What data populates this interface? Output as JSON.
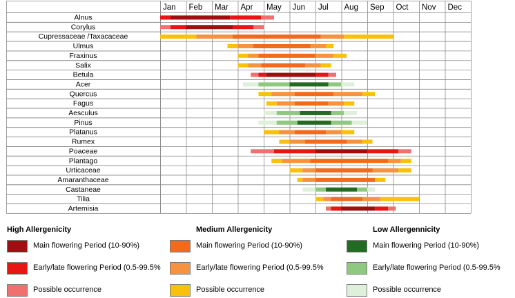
{
  "chart_data": {
    "type": "gantt",
    "x": [
      "Jan",
      "Feb",
      "Mar",
      "Apr",
      "May",
      "Jun",
      "Jul",
      "Aug",
      "Sep",
      "Oct",
      "Nov",
      "Dec"
    ],
    "colors": {
      "high": {
        "main": "#a00f0f",
        "early": "#e81515",
        "possible": "#f07070"
      },
      "medium": {
        "main": "#f26a1b",
        "early": "#f59340",
        "possible": "#f9c10b"
      },
      "low": {
        "main": "#236b23",
        "early": "#8fc97f",
        "possible": "#dff0da"
      }
    },
    "series": [
      {
        "name": "Alnus",
        "allergenicity": "high",
        "segments": [
          {
            "start": 0.0,
            "end": 0.4,
            "period": "early"
          },
          {
            "start": 0.4,
            "end": 2.7,
            "period": "main"
          },
          {
            "start": 2.7,
            "end": 3.9,
            "period": "early"
          },
          {
            "start": 3.9,
            "end": 4.4,
            "period": "possible"
          }
        ]
      },
      {
        "name": "Corylus",
        "allergenicity": "high",
        "segments": [
          {
            "start": 0.0,
            "end": 0.4,
            "period": "possible"
          },
          {
            "start": 0.4,
            "end": 1.0,
            "period": "early"
          },
          {
            "start": 1.0,
            "end": 2.8,
            "period": "main"
          },
          {
            "start": 2.8,
            "end": 3.6,
            "period": "early"
          },
          {
            "start": 3.6,
            "end": 4.0,
            "period": "possible"
          }
        ]
      },
      {
        "name": "Cupressaceae /Taxacaceae",
        "allergenicity": "medium",
        "segments": [
          {
            "start": 0.0,
            "end": 1.4,
            "period": "possible"
          },
          {
            "start": 1.4,
            "end": 2.8,
            "period": "early"
          },
          {
            "start": 2.8,
            "end": 6.2,
            "period": "main"
          },
          {
            "start": 6.2,
            "end": 7.1,
            "period": "early"
          },
          {
            "start": 7.1,
            "end": 9.0,
            "period": "possible"
          }
        ]
      },
      {
        "name": "Ulmus",
        "allergenicity": "medium",
        "segments": [
          {
            "start": 2.6,
            "end": 3.0,
            "period": "possible"
          },
          {
            "start": 3.0,
            "end": 3.6,
            "period": "early"
          },
          {
            "start": 3.6,
            "end": 5.8,
            "period": "main"
          },
          {
            "start": 5.8,
            "end": 6.4,
            "period": "early"
          },
          {
            "start": 6.4,
            "end": 6.7,
            "period": "possible"
          }
        ]
      },
      {
        "name": "Fraxinus",
        "allergenicity": "medium",
        "segments": [
          {
            "start": 3.0,
            "end": 3.4,
            "period": "possible"
          },
          {
            "start": 3.4,
            "end": 3.8,
            "period": "early"
          },
          {
            "start": 3.8,
            "end": 6.0,
            "period": "main"
          },
          {
            "start": 6.0,
            "end": 6.7,
            "period": "early"
          },
          {
            "start": 6.7,
            "end": 7.2,
            "period": "possible"
          }
        ]
      },
      {
        "name": "Salix",
        "allergenicity": "medium",
        "segments": [
          {
            "start": 3.0,
            "end": 3.4,
            "period": "possible"
          },
          {
            "start": 3.4,
            "end": 3.9,
            "period": "early"
          },
          {
            "start": 3.9,
            "end": 5.6,
            "period": "main"
          },
          {
            "start": 5.6,
            "end": 6.2,
            "period": "early"
          },
          {
            "start": 6.2,
            "end": 6.6,
            "period": "possible"
          }
        ]
      },
      {
        "name": "Betula",
        "allergenicity": "high",
        "segments": [
          {
            "start": 3.5,
            "end": 3.8,
            "period": "possible"
          },
          {
            "start": 3.8,
            "end": 4.1,
            "period": "early"
          },
          {
            "start": 4.1,
            "end": 6.0,
            "period": "main"
          },
          {
            "start": 6.0,
            "end": 6.5,
            "period": "early"
          },
          {
            "start": 6.5,
            "end": 6.8,
            "period": "possible"
          }
        ]
      },
      {
        "name": "Acer",
        "allergenicity": "low",
        "segments": [
          {
            "start": 3.2,
            "end": 3.8,
            "period": "possible"
          },
          {
            "start": 3.8,
            "end": 5.0,
            "period": "early"
          },
          {
            "start": 5.0,
            "end": 6.5,
            "period": "main"
          },
          {
            "start": 6.5,
            "end": 7.0,
            "period": "early"
          },
          {
            "start": 7.0,
            "end": 7.5,
            "period": "possible"
          }
        ]
      },
      {
        "name": "Quercus",
        "allergenicity": "medium",
        "segments": [
          {
            "start": 3.8,
            "end": 4.3,
            "period": "possible"
          },
          {
            "start": 4.3,
            "end": 5.2,
            "period": "early"
          },
          {
            "start": 5.2,
            "end": 6.7,
            "period": "main"
          },
          {
            "start": 6.7,
            "end": 7.8,
            "period": "early"
          },
          {
            "start": 7.8,
            "end": 8.3,
            "period": "possible"
          }
        ]
      },
      {
        "name": "Fagus",
        "allergenicity": "medium",
        "segments": [
          {
            "start": 4.1,
            "end": 4.5,
            "period": "possible"
          },
          {
            "start": 4.5,
            "end": 5.2,
            "period": "early"
          },
          {
            "start": 5.2,
            "end": 6.5,
            "period": "main"
          },
          {
            "start": 6.5,
            "end": 7.1,
            "period": "early"
          },
          {
            "start": 7.1,
            "end": 7.5,
            "period": "possible"
          }
        ]
      },
      {
        "name": "Aesculus",
        "allergenicity": "low",
        "segments": [
          {
            "start": 4.0,
            "end": 4.5,
            "period": "possible"
          },
          {
            "start": 4.5,
            "end": 5.4,
            "period": "early"
          },
          {
            "start": 5.4,
            "end": 6.6,
            "period": "main"
          },
          {
            "start": 6.6,
            "end": 7.1,
            "period": "early"
          },
          {
            "start": 7.1,
            "end": 7.6,
            "period": "possible"
          }
        ]
      },
      {
        "name": "Pinus",
        "allergenicity": "low",
        "segments": [
          {
            "start": 3.8,
            "end": 4.5,
            "period": "possible"
          },
          {
            "start": 4.5,
            "end": 5.3,
            "period": "early"
          },
          {
            "start": 5.3,
            "end": 6.6,
            "period": "main"
          },
          {
            "start": 6.6,
            "end": 7.4,
            "period": "early"
          },
          {
            "start": 7.4,
            "end": 8.0,
            "period": "possible"
          }
        ]
      },
      {
        "name": "Platanus",
        "allergenicity": "medium",
        "segments": [
          {
            "start": 4.0,
            "end": 4.6,
            "period": "possible"
          },
          {
            "start": 4.6,
            "end": 5.2,
            "period": "early"
          },
          {
            "start": 5.2,
            "end": 6.4,
            "period": "main"
          },
          {
            "start": 6.4,
            "end": 7.0,
            "period": "early"
          },
          {
            "start": 7.0,
            "end": 7.5,
            "period": "possible"
          }
        ]
      },
      {
        "name": "Rumex",
        "allergenicity": "medium",
        "segments": [
          {
            "start": 4.6,
            "end": 5.0,
            "period": "possible"
          },
          {
            "start": 5.0,
            "end": 5.6,
            "period": "early"
          },
          {
            "start": 5.6,
            "end": 7.2,
            "period": "main"
          },
          {
            "start": 7.2,
            "end": 7.8,
            "period": "early"
          },
          {
            "start": 7.8,
            "end": 8.2,
            "period": "possible"
          }
        ]
      },
      {
        "name": "Poaceae",
        "allergenicity": "high",
        "segments": [
          {
            "start": 3.5,
            "end": 4.4,
            "period": "possible"
          },
          {
            "start": 4.4,
            "end": 6.0,
            "period": "early"
          },
          {
            "start": 6.0,
            "end": 8.0,
            "period": "main"
          },
          {
            "start": 8.0,
            "end": 9.2,
            "period": "early"
          },
          {
            "start": 9.2,
            "end": 9.7,
            "period": "possible"
          }
        ]
      },
      {
        "name": "Plantago",
        "allergenicity": "medium",
        "segments": [
          {
            "start": 4.3,
            "end": 4.7,
            "period": "possible"
          },
          {
            "start": 4.7,
            "end": 5.8,
            "period": "early"
          },
          {
            "start": 5.8,
            "end": 8.8,
            "period": "main"
          },
          {
            "start": 8.8,
            "end": 9.3,
            "period": "early"
          },
          {
            "start": 9.3,
            "end": 9.7,
            "period": "possible"
          }
        ]
      },
      {
        "name": "Urticaceae",
        "allergenicity": "medium",
        "segments": [
          {
            "start": 5.0,
            "end": 5.5,
            "period": "possible"
          },
          {
            "start": 5.5,
            "end": 6.0,
            "period": "early"
          },
          {
            "start": 6.0,
            "end": 8.2,
            "period": "main"
          },
          {
            "start": 8.2,
            "end": 9.2,
            "period": "early"
          },
          {
            "start": 9.2,
            "end": 9.7,
            "period": "possible"
          }
        ]
      },
      {
        "name": "Amaranthaceae",
        "allergenicity": "medium",
        "segments": [
          {
            "start": 5.3,
            "end": 5.5,
            "period": "possible"
          },
          {
            "start": 5.5,
            "end": 6.0,
            "period": "early"
          },
          {
            "start": 6.0,
            "end": 8.3,
            "period": "main"
          },
          {
            "start": 8.3,
            "end": 8.7,
            "period": "possible"
          }
        ]
      },
      {
        "name": "Castaneae",
        "allergenicity": "low",
        "segments": [
          {
            "start": 5.5,
            "end": 6.0,
            "period": "possible"
          },
          {
            "start": 6.0,
            "end": 6.4,
            "period": "early"
          },
          {
            "start": 6.4,
            "end": 7.6,
            "period": "main"
          },
          {
            "start": 7.6,
            "end": 8.0,
            "period": "early"
          },
          {
            "start": 8.0,
            "end": 8.3,
            "period": "possible"
          }
        ]
      },
      {
        "name": "Tilia",
        "allergenicity": "medium",
        "segments": [
          {
            "start": 6.0,
            "end": 6.3,
            "period": "possible"
          },
          {
            "start": 6.3,
            "end": 6.6,
            "period": "early"
          },
          {
            "start": 6.6,
            "end": 7.8,
            "period": "main"
          },
          {
            "start": 7.8,
            "end": 8.5,
            "period": "early"
          },
          {
            "start": 8.5,
            "end": 10.0,
            "period": "possible"
          }
        ]
      },
      {
        "name": "Artemisia",
        "allergenicity": "high",
        "segments": [
          {
            "start": 6.4,
            "end": 6.6,
            "period": "possible"
          },
          {
            "start": 6.6,
            "end": 7.0,
            "period": "early"
          },
          {
            "start": 7.0,
            "end": 8.3,
            "period": "main"
          },
          {
            "start": 8.3,
            "end": 8.8,
            "period": "early"
          },
          {
            "start": 8.8,
            "end": 9.1,
            "period": "possible"
          }
        ]
      }
    ]
  },
  "legend": {
    "high": {
      "title": "High Allergenicity",
      "items": [
        {
          "label": "Main flowering Period (10-90%)",
          "color": "#a00f0f"
        },
        {
          "label": "Early/late flowering Period (0.5-99.5%",
          "color": "#e81515"
        },
        {
          "label": "Possible occurrence",
          "color": "#f07070"
        }
      ]
    },
    "medium": {
      "title": "Medium Allergenicity",
      "items": [
        {
          "label": "Main flowering Period (10-90%)",
          "color": "#f26a1b"
        },
        {
          "label": "Early/late flowering Period (0.5-99.5%",
          "color": "#f59340"
        },
        {
          "label": "Possible occurrence",
          "color": "#f9c10b"
        }
      ]
    },
    "low": {
      "title": "Low Allergennicity",
      "items": [
        {
          "label": "Main flowering Period (10-90%)",
          "color": "#236b23"
        },
        {
          "label": "Early/late flowering Period (0.5-99.5%",
          "color": "#8fc97f"
        },
        {
          "label": "Possible occurrence",
          "color": "#dff0da"
        }
      ]
    }
  }
}
